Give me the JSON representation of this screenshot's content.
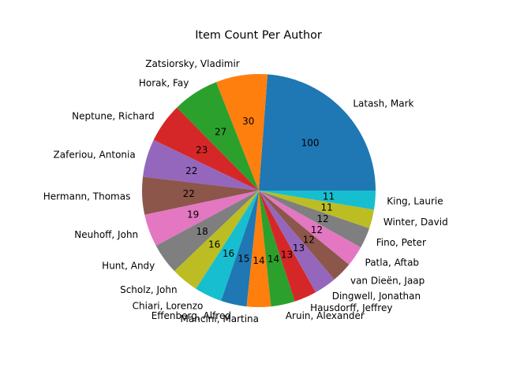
{
  "chart_data": {
    "type": "pie",
    "title": "Item Count Per Author",
    "start_angle_deg": 0,
    "direction": "counterclockwise",
    "categories": [
      "Latash, Mark",
      "Zatsiorsky, Vladimir",
      "Horak, Fay",
      "Neptune, Richard",
      "Zaferiou, Antonia",
      "Hermann, Thomas",
      "Neuhoff, John",
      "Hunt, Andy",
      "Scholz, John",
      "Chiari, Lorenzo",
      "Effenberg, Alfred",
      "Mancini, Martina",
      "Aruin, Alexander",
      "Hausdorff, Jeffrey",
      "Dingwell, Jonathan",
      "van Dieën, Jaap",
      "Patla, Aftab",
      "Fino, Peter",
      "Winter, David",
      "King, Laurie"
    ],
    "values": [
      100,
      30,
      27,
      23,
      22,
      22,
      19,
      18,
      16,
      16,
      15,
      14,
      14,
      13,
      13,
      12,
      12,
      12,
      11,
      11
    ],
    "value_labels": [
      "100",
      "30",
      "27",
      "23",
      "22",
      "22",
      "19",
      "18",
      "16",
      "16",
      "15",
      "14",
      "14",
      "13",
      "13",
      "12",
      "12",
      "12",
      "11",
      "11"
    ],
    "colors": [
      "#1f77b4",
      "#ff7f0e",
      "#2ca02c",
      "#d62728",
      "#9467bd",
      "#8c564b",
      "#e377c2",
      "#7f7f7f",
      "#bcbd22",
      "#17becf",
      "#1f77b4",
      "#ff7f0e",
      "#2ca02c",
      "#d62728",
      "#9467bd",
      "#8c564b",
      "#e377c2",
      "#7f7f7f",
      "#bcbd22",
      "#17becf"
    ],
    "legend": "none"
  }
}
